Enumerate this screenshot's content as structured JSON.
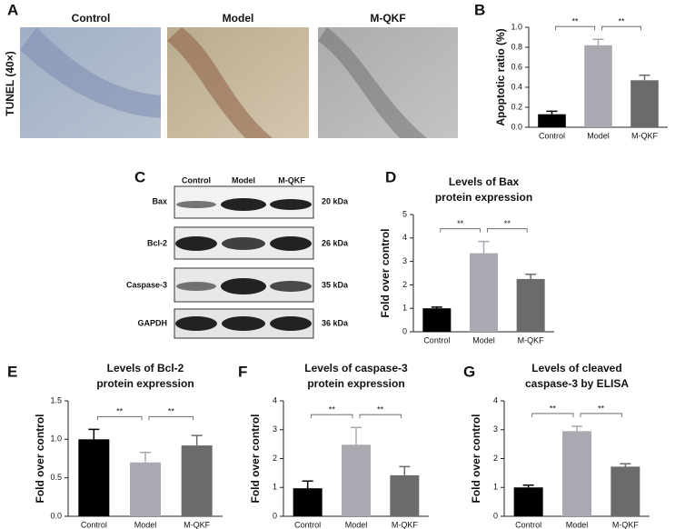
{
  "figure": {
    "letters": [
      "A",
      "B",
      "C",
      "D",
      "E",
      "F",
      "G"
    ],
    "tunel": {
      "side_label": "TUNEL (40×)",
      "columns": [
        "Control",
        "Model",
        "M-QKF"
      ]
    },
    "blot": {
      "columns": [
        "Control",
        "Model",
        "M-QKF"
      ],
      "rows": [
        {
          "name": "Bax",
          "size": "20 kDa"
        },
        {
          "name": "Bcl-2",
          "size": "26 kDa"
        },
        {
          "name": "Caspase-3",
          "size": "35 kDa"
        },
        {
          "name": "GAPDH",
          "size": "36 kDa"
        }
      ]
    }
  },
  "chart_data": [
    {
      "type": "bar",
      "ylabel": "Apoptotic ratio (%)",
      "categories": [
        "Control",
        "Model",
        "M-QKF"
      ],
      "values": [
        0.13,
        0.82,
        0.47
      ],
      "errors": [
        0.03,
        0.06,
        0.05
      ],
      "colors": [
        "#000000",
        "#a9a9b1",
        "#6b6b6b"
      ],
      "ylim": [
        0,
        1.0
      ],
      "yticks": [
        {
          "value": 0,
          "label": "0.0"
        },
        0.2,
        0.4,
        0.6,
        0.8,
        {
          "value": 1,
          "label": "1.0"
        }
      ],
      "annotations": [
        "**",
        "**"
      ]
    },
    {
      "type": "bar",
      "title": [
        "Levels of Bax",
        "protein expression"
      ],
      "ylabel": "Fold over control",
      "categories": [
        "Control",
        "Model",
        "M-QKF"
      ],
      "values": [
        1.0,
        3.35,
        2.25
      ],
      "errors": [
        0.05,
        0.5,
        0.2
      ],
      "colors": [
        "#000000",
        "#a9a9b1",
        "#6b6b6b"
      ],
      "ylim": [
        0,
        5
      ],
      "yticks": [
        0,
        1,
        2,
        3,
        4,
        5
      ],
      "annotations": [
        "**",
        "**"
      ]
    },
    {
      "type": "bar",
      "title": [
        "Levels of Bcl-2",
        "protein expression"
      ],
      "ylabel": "Fold over control",
      "categories": [
        "Control",
        "Model",
        "M-QKF"
      ],
      "values": [
        1.0,
        0.7,
        0.92
      ],
      "errors": [
        0.13,
        0.13,
        0.13
      ],
      "colors": [
        "#000000",
        "#a9a9b1",
        "#6b6b6b"
      ],
      "ylim": [
        0,
        1.5
      ],
      "yticks": [
        {
          "value": 0,
          "label": "0.0"
        },
        0.5,
        {
          "value": 1,
          "label": "1.0"
        },
        1.5
      ],
      "annotations": [
        "**",
        "**"
      ]
    },
    {
      "type": "bar",
      "title": [
        "Levels of caspase-3",
        "protein expression"
      ],
      "ylabel": "Fold over control",
      "categories": [
        "Control",
        "Model",
        "M-QKF"
      ],
      "values": [
        0.97,
        2.48,
        1.42
      ],
      "errors": [
        0.25,
        0.6,
        0.3
      ],
      "colors": [
        "#000000",
        "#a9a9b1",
        "#6b6b6b"
      ],
      "ylim": [
        0,
        4
      ],
      "yticks": [
        0,
        1,
        2,
        3,
        4
      ],
      "annotations": [
        "**",
        "**"
      ]
    },
    {
      "type": "bar",
      "title": [
        "Levels of cleaved",
        "caspase-3 by ELISA"
      ],
      "ylabel": "Fold over control",
      "categories": [
        "Control",
        "Model",
        "M-QKF"
      ],
      "values": [
        1.0,
        2.95,
        1.72
      ],
      "errors": [
        0.08,
        0.17,
        0.1
      ],
      "colors": [
        "#000000",
        "#a9a9b1",
        "#6b6b6b"
      ],
      "ylim": [
        0,
        4
      ],
      "yticks": [
        0,
        1,
        2,
        3,
        4
      ],
      "annotations": [
        "**",
        "**"
      ]
    }
  ]
}
